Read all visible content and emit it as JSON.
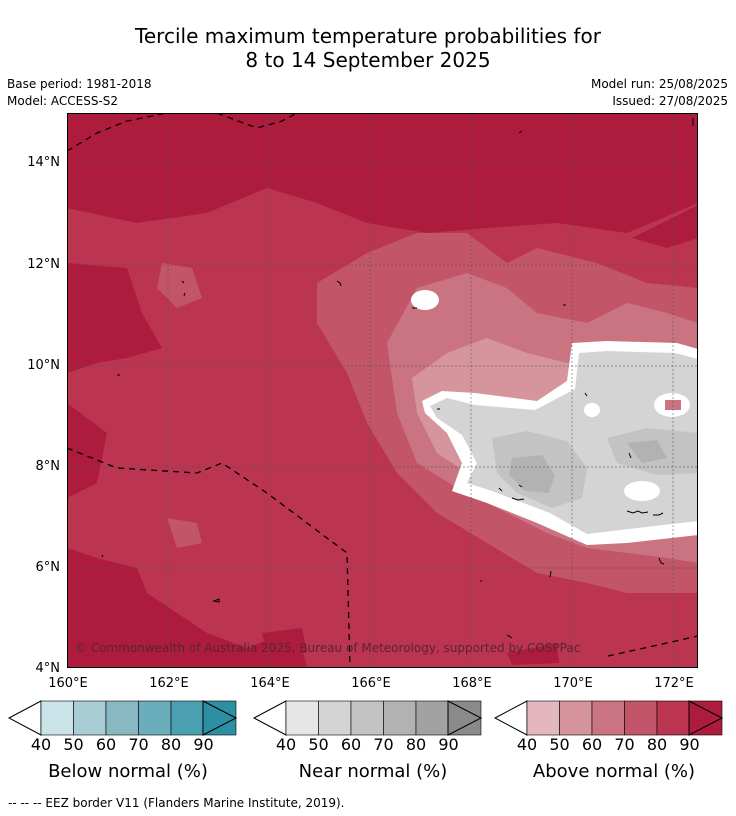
{
  "title": {
    "line1": "Tercile maximum temperature probabilities for",
    "line2": "8 to 14 September 2025"
  },
  "meta": {
    "base_period": "Base period: 1981-2018",
    "model": "Model: ACCESS-S2",
    "model_run": "Model run: 25/08/2025",
    "issued": "Issued: 27/08/2025"
  },
  "map": {
    "copyright": "© Commonwealth of Australia 2025, Bureau of Meteorology, supported by COSPPac",
    "lat_labels": [
      "14°N",
      "12°N",
      "10°N",
      "8°N",
      "6°N",
      "4°N"
    ],
    "lon_labels": [
      "160°E",
      "162°E",
      "164°E",
      "166°E",
      "168°E",
      "170°E",
      "172°E"
    ],
    "lat_range": [
      4,
      15.1
    ],
    "lon_range": [
      160,
      172.5
    ]
  },
  "colorbars": [
    {
      "title": "Below normal (%)",
      "ticks": [
        "40",
        "50",
        "60",
        "70",
        "80",
        "90"
      ],
      "colors": [
        "#c9e3e8",
        "#a8cdd4",
        "#88b9c3",
        "#6aaebb",
        "#4aa0b0",
        "#2d8fa2"
      ]
    },
    {
      "title": "Near normal (%)",
      "ticks": [
        "40",
        "50",
        "60",
        "70",
        "80",
        "90"
      ],
      "colors": [
        "#e6e6e6",
        "#d4d4d4",
        "#c3c3c3",
        "#b2b2b2",
        "#a2a2a2",
        "#8a8a8a"
      ]
    },
    {
      "title": "Above normal (%)",
      "ticks": [
        "40",
        "50",
        "60",
        "70",
        "80",
        "90"
      ],
      "colors": [
        "#e3b7bd",
        "#d6959d",
        "#c97480",
        "#c25568",
        "#bb3550",
        "#ad1c3c"
      ]
    }
  ],
  "footer": "--  --  -- EEZ border V11 (Flanders Marine Institute, 2019)."
}
